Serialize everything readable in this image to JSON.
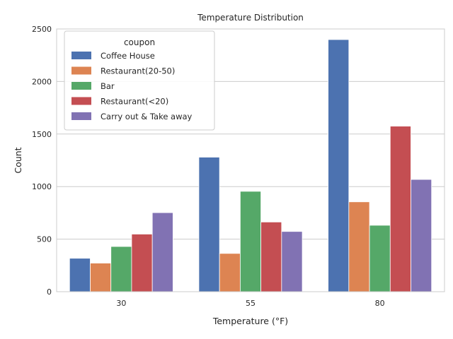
{
  "chart_data": {
    "type": "bar",
    "title": "Temperature Distribution",
    "xlabel": "Temperature (°F)",
    "ylabel": "Count",
    "categories": [
      "30",
      "55",
      "80"
    ],
    "ylim": [
      0,
      2500
    ],
    "yticks": [
      0,
      500,
      1000,
      1500,
      2000,
      2500
    ],
    "grid": true,
    "legend": {
      "title": "coupon",
      "placement": "top-left"
    },
    "series": [
      {
        "name": "Coffee House",
        "color": "#4c72b0",
        "values": [
          318,
          1280,
          2399
        ]
      },
      {
        "name": "Restaurant(20-50)",
        "color": "#dd8452",
        "values": [
          272,
          364,
          855
        ]
      },
      {
        "name": "Bar",
        "color": "#55a868",
        "values": [
          430,
          955,
          632
        ]
      },
      {
        "name": "Restaurant(<20)",
        "color": "#c44e52",
        "values": [
          548,
          663,
          1575
        ]
      },
      {
        "name": "Carry out & Take away",
        "color": "#8172b3",
        "values": [
          752,
          573,
          1068
        ]
      }
    ]
  }
}
